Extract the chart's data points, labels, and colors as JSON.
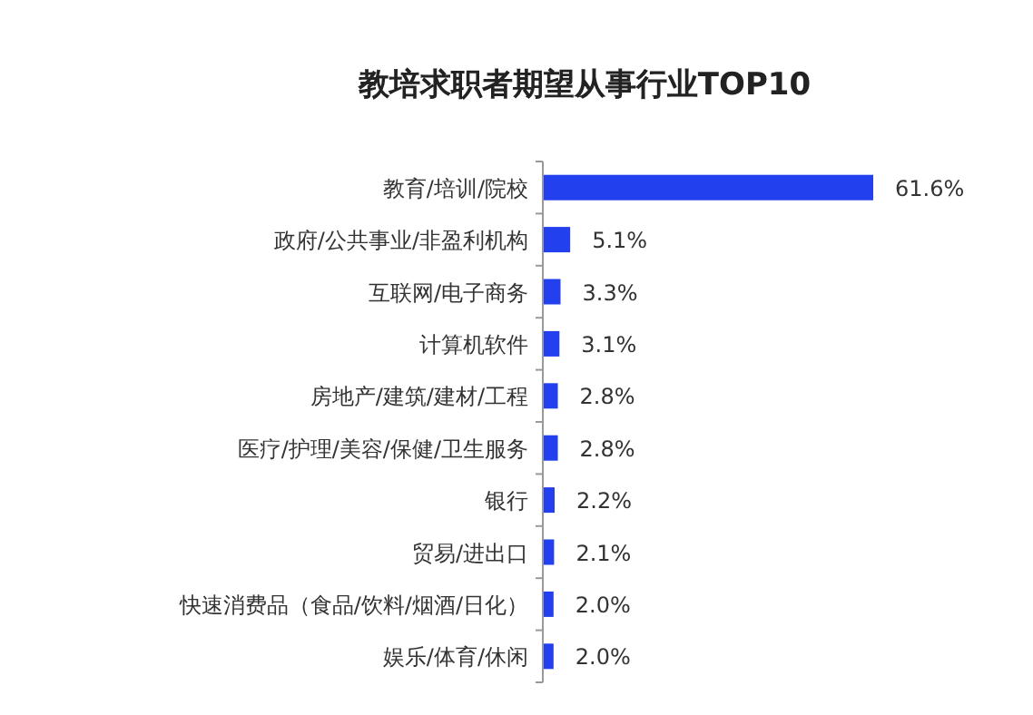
{
  "chart_data": {
    "type": "bar",
    "orientation": "horizontal",
    "title": "教培求职者期望从事行业TOP10",
    "categories": [
      "教育/培训/院校",
      "政府/公共事业/非盈利机构",
      "互联网/电子商务",
      "计算机软件",
      "房地产/建筑/建材/工程",
      "医疗/护理/美容/保健/卫生服务",
      "银行",
      "贸易/进出口",
      "快速消费品（食品/饮料/烟酒/日化）",
      "娱乐/体育/休闲"
    ],
    "values": [
      61.6,
      5.1,
      3.3,
      3.1,
      2.8,
      2.8,
      2.2,
      2.1,
      2.0,
      2.0
    ],
    "value_labels": [
      "61.6%",
      "5.1%",
      "3.3%",
      "3.1%",
      "2.8%",
      "2.8%",
      "2.2%",
      "2.1%",
      "2.0%",
      "2.0%"
    ],
    "color": "#2340ee"
  }
}
